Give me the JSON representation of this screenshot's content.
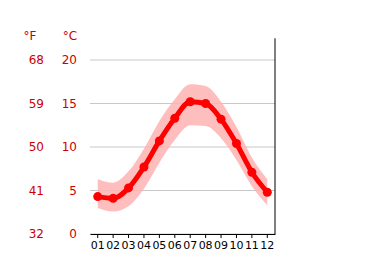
{
  "chart_data": {
    "type": "line",
    "y_label": "°C",
    "y2_label": "°F",
    "categories": [
      "01",
      "02",
      "03",
      "04",
      "05",
      "06",
      "07",
      "08",
      "09",
      "10",
      "11",
      "12"
    ],
    "series": [
      {
        "type": "area",
        "color": "#ffb3b3",
        "low": [
          3.0,
          2.6,
          3.2,
          5.2,
          8.2,
          10.8,
          12.5,
          12.4,
          11.0,
          8.5,
          5.5,
          3.3
        ],
        "high": [
          6.3,
          5.9,
          7.2,
          9.8,
          13.0,
          15.5,
          17.2,
          17.0,
          15.2,
          12.3,
          8.8,
          6.3
        ]
      },
      {
        "type": "line",
        "color": "#ff0000",
        "marker": "circle",
        "values": [
          4.3,
          4.1,
          5.3,
          7.7,
          10.7,
          13.3,
          15.2,
          15.0,
          13.2,
          10.4,
          7.1,
          4.8
        ]
      }
    ],
    "ylim": [
      0,
      22.5
    ],
    "yticks": [
      0,
      5,
      10,
      15,
      20
    ],
    "y2lim": [
      32,
      72.5
    ],
    "y2ticks": [
      32,
      41,
      50,
      59,
      68
    ],
    "grid": true
  }
}
